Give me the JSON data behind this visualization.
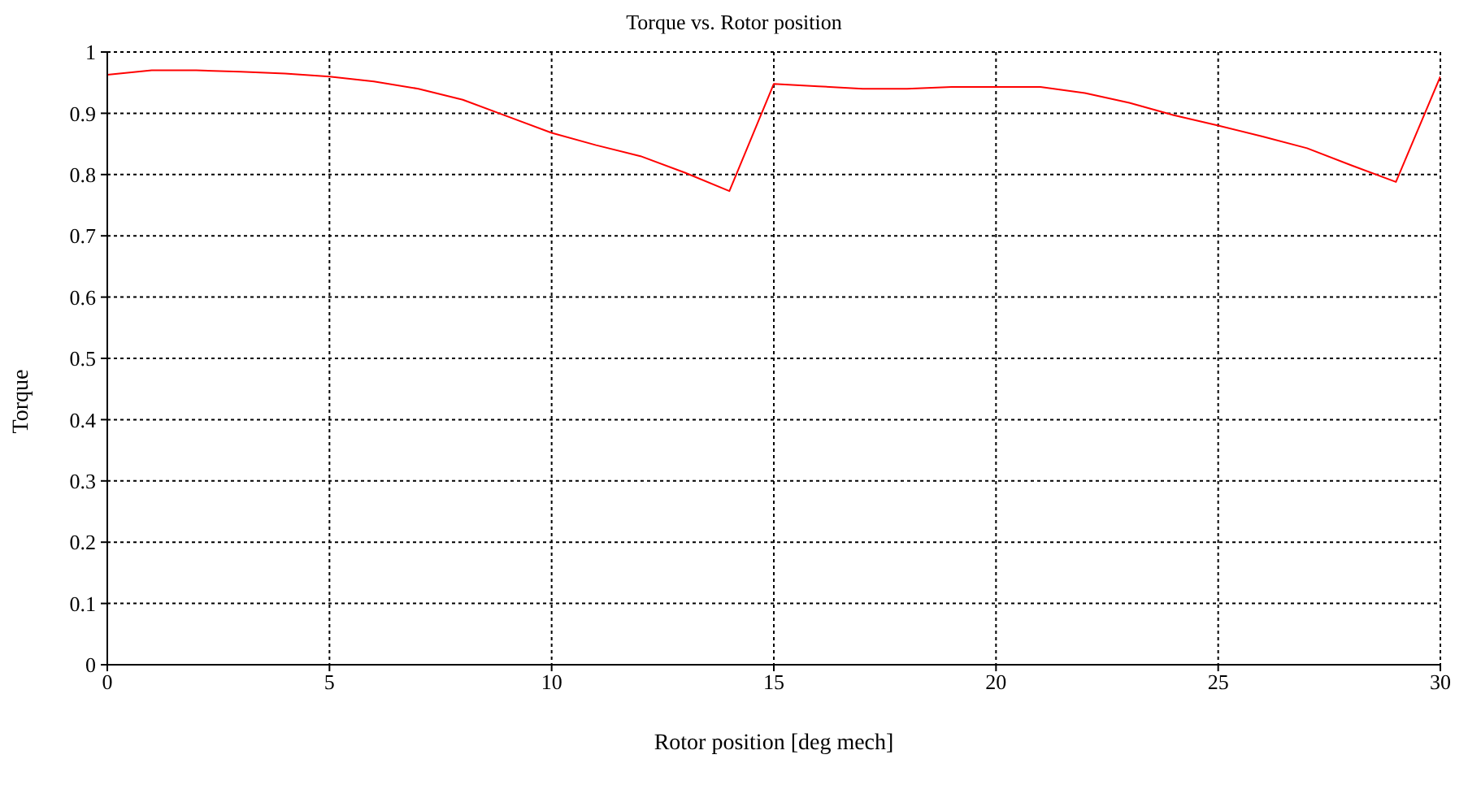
{
  "chart_data": {
    "type": "line",
    "title": "Torque vs. Rotor position",
    "xlabel": "Rotor position [deg mech]",
    "ylabel": "Torque",
    "x": [
      0,
      1,
      2,
      3,
      4,
      5,
      6,
      7,
      8,
      9,
      10,
      11,
      12,
      13,
      14,
      15,
      16,
      17,
      18,
      19,
      20,
      21,
      22,
      23,
      24,
      25,
      26,
      27,
      28,
      29,
      30
    ],
    "series": [
      {
        "color": "#ff0000",
        "values": [
          0.963,
          0.97,
          0.97,
          0.968,
          0.965,
          0.96,
          0.952,
          0.94,
          0.922,
          0.895,
          0.868,
          0.848,
          0.83,
          0.803,
          0.773,
          0.948,
          0.944,
          0.94,
          0.94,
          0.943,
          0.943,
          0.943,
          0.933,
          0.917,
          0.897,
          0.88,
          0.862,
          0.843,
          0.815,
          0.788,
          0.96
        ]
      }
    ],
    "xlim": [
      0,
      30
    ],
    "xticks": [
      0,
      5,
      10,
      15,
      20,
      25,
      30
    ],
    "ylim": [
      0,
      1
    ],
    "yticks": [
      0,
      0.1,
      0.2,
      0.3,
      0.4,
      0.5,
      0.6,
      0.7,
      0.8,
      0.9,
      1
    ],
    "grid": true,
    "legend": false,
    "marker": "none",
    "line_style": "solid"
  }
}
